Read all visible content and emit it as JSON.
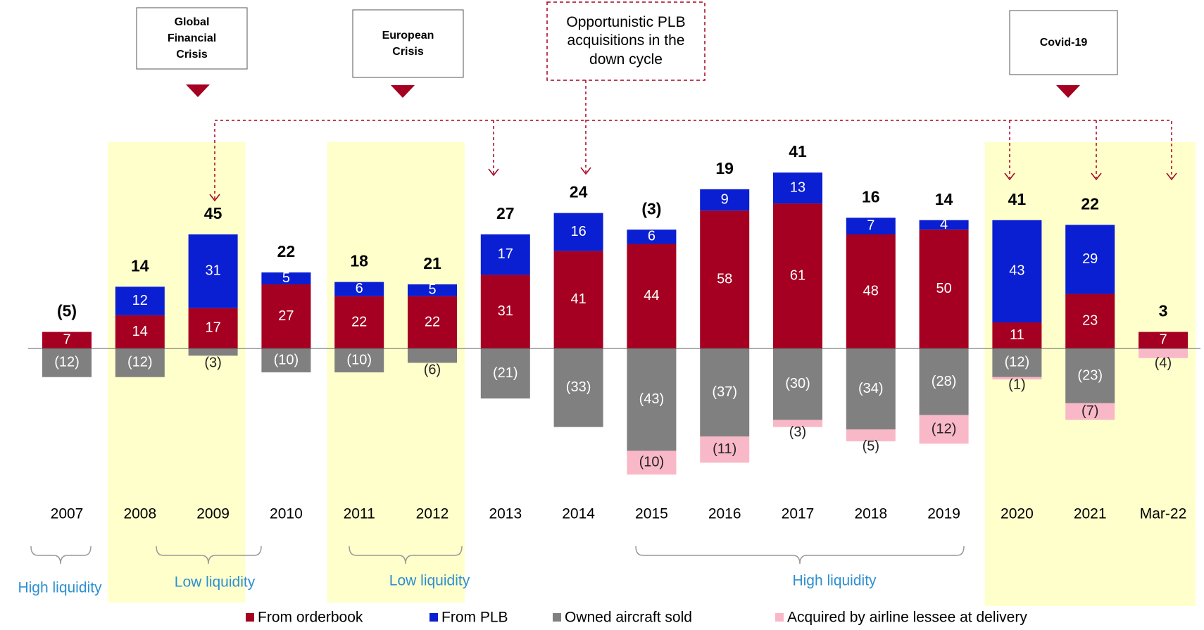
{
  "chart_data": {
    "type": "bar",
    "stacked": true,
    "categories": [
      "2007",
      "2008",
      "2009",
      "2010",
      "2011",
      "2012",
      "2013",
      "2014",
      "2015",
      "2016",
      "2017",
      "2018",
      "2019",
      "2020",
      "2021",
      "Mar-22"
    ],
    "series": [
      {
        "name": "From orderbook",
        "color": "#a50021",
        "values": [
          7,
          14,
          17,
          27,
          22,
          22,
          31,
          41,
          44,
          58,
          61,
          48,
          50,
          11,
          23,
          7
        ]
      },
      {
        "name": "From PLB",
        "color": "#0a1ed2",
        "values": [
          null,
          12,
          31,
          5,
          6,
          5,
          17,
          16,
          6,
          9,
          13,
          7,
          4,
          43,
          29,
          null
        ]
      },
      {
        "name": "Owned aircraft sold",
        "color": "#808080",
        "values": [
          -12,
          -12,
          -3,
          -10,
          -10,
          -6,
          -21,
          -33,
          -43,
          -37,
          -30,
          -34,
          -28,
          -12,
          -23,
          null
        ],
        "value_labels": [
          "(12)",
          "(12)",
          "(3)",
          "(10)",
          "(10)",
          "(6)",
          "(21)",
          "(33)",
          "(43)",
          "(37)",
          "(30)",
          "(34)",
          "(28)",
          "(12)",
          "(23)",
          null
        ]
      },
      {
        "name": "Acquired by airline lessee at delivery",
        "color": "#f9b8c8",
        "values": [
          null,
          null,
          null,
          null,
          null,
          null,
          null,
          null,
          -10,
          -11,
          -3,
          -5,
          -12,
          -1,
          -7,
          -4
        ],
        "value_labels": [
          null,
          null,
          null,
          null,
          null,
          null,
          null,
          null,
          "(10)",
          "(11)",
          "(3)",
          "(5)",
          "(12)",
          "(1)",
          "(7)",
          "(4)"
        ]
      }
    ],
    "totals": {
      "values": [
        -5,
        14,
        45,
        22,
        18,
        21,
        27,
        24,
        -3,
        19,
        41,
        16,
        14,
        41,
        22,
        3
      ],
      "value_labels": [
        "(5)",
        "14",
        "45",
        "22",
        "18",
        "21",
        "27",
        "24",
        "(3)",
        "19",
        "41",
        "16",
        "14",
        "41",
        "22",
        "3"
      ]
    },
    "ylim": [
      -55,
      85
    ],
    "annotations": [
      "Global Financial Crisis",
      "European Crisis",
      "Opportunistic PLB acquisitions in the down cycle",
      "Covid-19"
    ],
    "periods": [
      "High liquidity",
      "Low liquidity",
      "Low liquidity",
      "High liquidity"
    ]
  }
}
